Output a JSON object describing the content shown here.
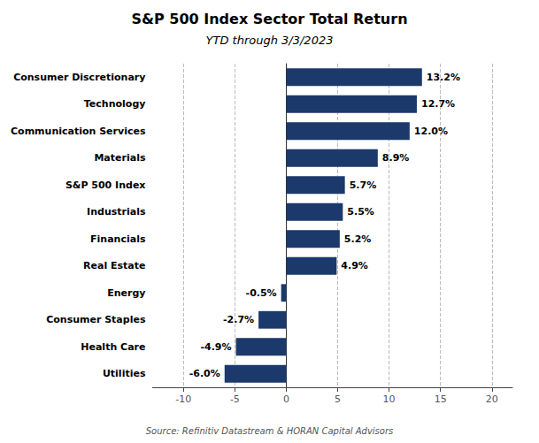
{
  "chart_data": {
    "type": "bar",
    "orientation": "horizontal",
    "title": "S&P 500 Index Sector Total Return",
    "subtitle": "YTD through 3/3/2023",
    "source": "Source: Refinitiv Datastream & HORAN Capital Advisors",
    "categories": [
      "Consumer Discretionary",
      "Technology",
      "Communication Services",
      "Materials",
      "S&P 500 Index",
      "Industrials",
      "Financials",
      "Real Estate",
      "Energy",
      "Consumer Staples",
      "Health Care",
      "Utilities"
    ],
    "values": [
      13.2,
      12.7,
      12.0,
      8.9,
      5.7,
      5.5,
      5.2,
      4.9,
      -0.5,
      -2.7,
      -4.9,
      -6.0
    ],
    "value_labels": [
      "13.2%",
      "12.7%",
      "12.0%",
      "8.9%",
      "5.7%",
      "5.5%",
      "5.2%",
      "4.9%",
      "-0.5%",
      "-2.7%",
      "-4.9%",
      "-6.0%"
    ],
    "color": "#1b3a6b",
    "xlim": [
      -13,
      22
    ],
    "xticks": [
      -10,
      -5,
      0,
      5,
      10,
      15,
      20
    ],
    "grid": true,
    "data_labels": true
  }
}
